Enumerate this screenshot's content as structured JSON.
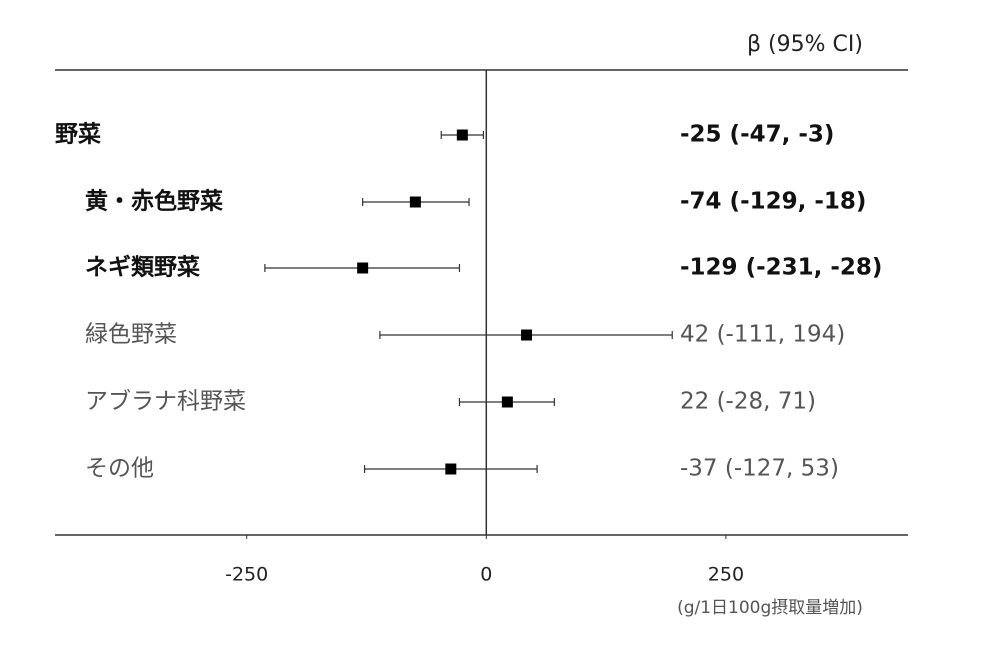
{
  "chart_data": {
    "type": "forest",
    "header": "β (95% CI)",
    "unit_label": "(g/1日100g摂取量増加)",
    "categories": [
      "野菜",
      "黄・赤色野菜",
      "ネギ類野菜",
      "緑色野菜",
      "アブラナ科野菜",
      "その他"
    ],
    "values": [
      -25,
      -74,
      -129,
      42,
      22,
      -37
    ],
    "lower": [
      -47,
      -129,
      -231,
      -111,
      -28,
      -127
    ],
    "upper": [
      -3,
      -18,
      -28,
      194,
      71,
      53
    ],
    "value_labels": [
      "-25 (-47, -3)",
      "-74 (-129, -18)",
      "-129 (-231, -28)",
      "42 (-111, 194)",
      "22 (-28, 71)",
      "-37 (-127, 53)"
    ],
    "bold": [
      true,
      true,
      true,
      false,
      false,
      false
    ],
    "color": "#000000",
    "xlim": [
      -450,
      440
    ],
    "xticks": [
      -250,
      0,
      250
    ],
    "grid": false
  }
}
